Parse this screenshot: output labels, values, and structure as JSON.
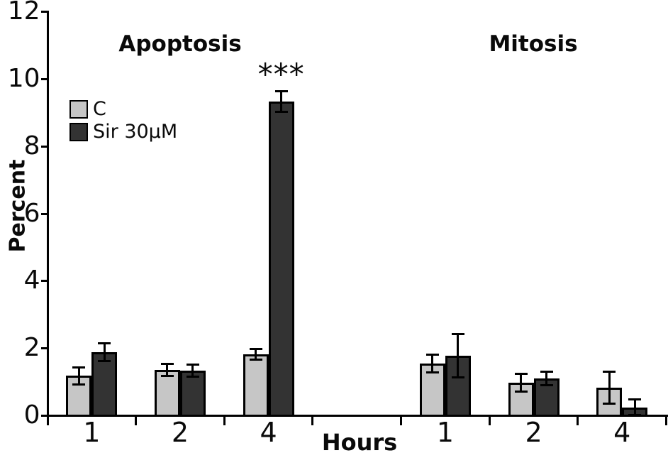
{
  "chart_data": {
    "type": "bar",
    "ylabel": "Percent",
    "xlabel": "Hours",
    "ylim": [
      0,
      12
    ],
    "yticks": [
      0,
      2,
      4,
      6,
      8,
      10,
      12
    ],
    "group_titles": [
      "Apoptosis",
      "Mitosis"
    ],
    "hour_labels": [
      "1",
      "2",
      "4"
    ],
    "categories": [
      "Apoptosis 1h",
      "Apoptosis 2h",
      "Apoptosis 4h",
      "Mitosis 1h",
      "Mitosis 2h",
      "Mitosis 4h"
    ],
    "legend": [
      {
        "label": "C",
        "color": "#c6c6c6"
      },
      {
        "label": "Sir 30µM",
        "color": "#333333"
      }
    ],
    "series": [
      {
        "name": "C",
        "color": "#c6c6c6",
        "values": [
          1.15,
          1.33,
          1.8,
          1.52,
          0.95,
          0.8
        ],
        "errors": [
          0.25,
          0.18,
          0.16,
          0.27,
          0.26,
          0.48
        ]
      },
      {
        "name": "Sir 30µM",
        "color": "#333333",
        "values": [
          1.85,
          1.3,
          9.3,
          1.75,
          1.07,
          0.22
        ],
        "errors": [
          0.26,
          0.18,
          0.3,
          0.65,
          0.2,
          0.23
        ]
      }
    ],
    "annotation": {
      "text": "***",
      "category_index": 2,
      "series_index": 1
    },
    "grid": false,
    "legend_position": "upper-left"
  }
}
